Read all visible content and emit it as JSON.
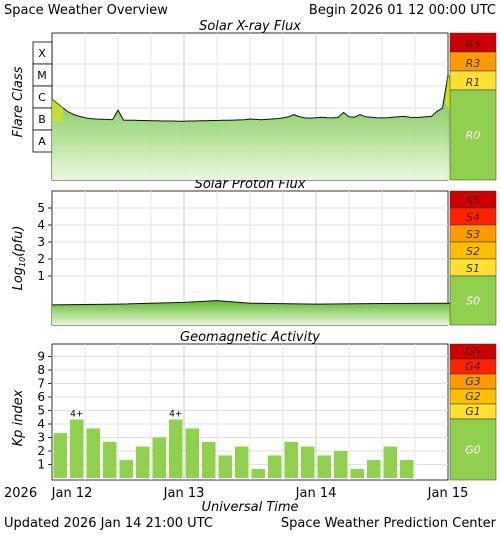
{
  "header": {
    "left": "Space Weather Overview",
    "right": "Begin 2026 01 12 00:00 UTC"
  },
  "footer": {
    "updated": "Updated 2026 Jan 14 21:00 UTC",
    "center": "Space Weather Prediction Center",
    "xlabel": "Universal Time"
  },
  "colors": {
    "bar_fill": "#8fd14f",
    "fill_top": "#5fbb2f",
    "fill_bottom": "#eaf8dc",
    "scale_green": "#8fd14f",
    "s1_yellow": "#ffe033",
    "s2_orange": "#ffbf00",
    "s3_orange": "#ff9900",
    "s4_red": "#ff2200",
    "s5_darkred": "#cc0000",
    "flare_yellow": "#e8e800"
  },
  "chart_data": [
    {
      "type": "area",
      "title": "Solar X-ray Flux",
      "ylabel": "Flare Class",
      "y_ticks": [
        "X",
        "M",
        "C",
        "B",
        "A"
      ],
      "x_ticks": [
        "Jan 12",
        "Jan 13",
        "Jan 14",
        "Jan 15"
      ],
      "x_range": [
        "2026-01-12T00:00",
        "2026-01-15T06:00"
      ],
      "grid": true,
      "scale": [
        {
          "label": "R5",
          "color": "#cc0000"
        },
        {
          "label": "R3",
          "color": "#ff9900"
        },
        {
          "label": "R1",
          "color": "#ffe033"
        },
        {
          "label": "R0",
          "color": "#8fd14f"
        }
      ],
      "series": [
        {
          "x_hours": [
            0,
            1,
            2,
            3,
            4,
            5,
            6,
            7,
            8,
            9,
            10,
            11,
            12,
            13,
            14,
            15,
            16,
            17,
            18,
            19,
            20,
            21,
            22,
            23,
            24,
            25,
            26,
            27,
            28,
            29,
            30,
            31,
            32,
            33,
            34,
            35,
            36,
            37,
            38,
            39,
            40,
            41,
            42,
            43,
            44,
            45,
            46,
            47,
            48,
            49,
            50,
            51,
            52,
            53,
            54,
            55,
            56,
            57,
            58,
            59,
            60,
            61,
            62,
            63,
            64,
            65,
            66,
            67,
            68,
            69,
            70,
            71,
            72,
            73
          ],
          "class_values": [
            1.4,
            1.2,
            1.0,
            0.82,
            0.7,
            0.62,
            0.56,
            0.52,
            0.5,
            0.49,
            0.48,
            0.47,
            0.9,
            0.45,
            0.44,
            0.44,
            0.43,
            0.43,
            0.42,
            0.42,
            0.41,
            0.41,
            0.41,
            0.4,
            0.4,
            0.41,
            0.41,
            0.42,
            0.42,
            0.43,
            0.43,
            0.44,
            0.44,
            0.45,
            0.46,
            0.47,
            0.5,
            0.48,
            0.47,
            0.48,
            0.5,
            0.52,
            0.55,
            0.6,
            0.7,
            0.6,
            0.55,
            0.54,
            0.56,
            0.58,
            0.56,
            0.55,
            0.57,
            0.8,
            0.6,
            0.58,
            0.7,
            0.6,
            0.58,
            0.56,
            0.55,
            0.56,
            0.58,
            0.6,
            0.62,
            0.58,
            0.57,
            0.58,
            0.6,
            0.62,
            0.85,
            1.0,
            2.5,
            2.0
          ]
        }
      ]
    },
    {
      "type": "area",
      "title": "Solar Proton Flux",
      "ylabel": "Log10(pfu)",
      "y_ticks": [
        1,
        2,
        3,
        4,
        5
      ],
      "x_range": [
        "2026-01-12T00:00",
        "2026-01-15T06:00"
      ],
      "grid": true,
      "scale": [
        {
          "label": "S5",
          "color": "#cc0000"
        },
        {
          "label": "S4",
          "color": "#ff2200"
        },
        {
          "label": "S3",
          "color": "#ff9900"
        },
        {
          "label": "S2",
          "color": "#ffbf00"
        },
        {
          "label": "S1",
          "color": "#ffe033"
        },
        {
          "label": "S0",
          "color": "#8fd14f"
        }
      ],
      "series": [
        {
          "x_hours": [
            0,
            12,
            24,
            30,
            36,
            48,
            60,
            73
          ],
          "log_values": [
            -0.7,
            -0.65,
            -0.55,
            -0.45,
            -0.6,
            -0.65,
            -0.62,
            -0.6
          ]
        }
      ]
    },
    {
      "type": "bar",
      "title": "Geomagnetic Activity",
      "ylabel": "Kp index",
      "ylim": [
        0,
        10
      ],
      "y_ticks": [
        1,
        2,
        3,
        4,
        5,
        6,
        7,
        8,
        9
      ],
      "grid": true,
      "scale": [
        {
          "label": "G5",
          "color": "#cc0000"
        },
        {
          "label": "G4",
          "color": "#ff2200"
        },
        {
          "label": "G3",
          "color": "#ff9900"
        },
        {
          "label": "G2",
          "color": "#ffbf00"
        },
        {
          "label": "G1",
          "color": "#ffe033"
        },
        {
          "label": "G0",
          "color": "#8fd14f"
        }
      ],
      "x_start_hour": 0,
      "bar_hours": 3,
      "values": [
        3.33,
        4.33,
        3.67,
        2.67,
        1.33,
        2.33,
        3.0,
        4.33,
        3.67,
        2.67,
        1.67,
        2.33,
        0.67,
        1.67,
        2.67,
        2.33,
        1.67,
        2.0,
        0.67,
        1.33,
        2.33,
        1.33
      ],
      "labels": [
        "",
        "4+",
        "",
        "",
        "",
        "",
        "",
        "4+",
        "",
        "",
        "",
        "",
        "",
        "",
        "",
        "",
        "",
        "",
        "",
        "",
        "",
        ""
      ]
    }
  ],
  "x_axis": {
    "year_label": "2026",
    "ticks": [
      "Jan 12",
      "Jan 13",
      "Jan 14",
      "Jan 15"
    ]
  }
}
